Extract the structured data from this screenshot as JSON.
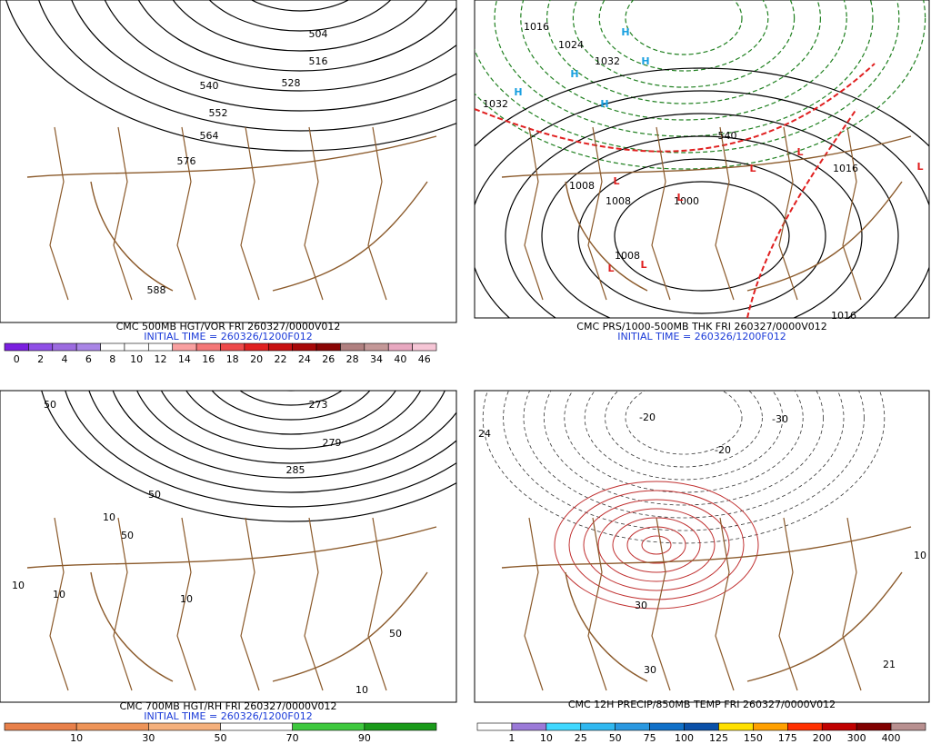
{
  "panels": [
    {
      "caption": "CMC 500MB HGT/VOR FRI 260327/0000V012",
      "init_time": "INITIAL TIME = 260326/1200F012",
      "contour_labels": [
        "504",
        "516",
        "528",
        "540",
        "552",
        "564",
        "576",
        "588"
      ],
      "scale": {
        "labels": [
          "0",
          "2",
          "4",
          "6",
          "8",
          "10",
          "12",
          "14",
          "16",
          "18",
          "20",
          "22",
          "24",
          "26",
          "28",
          "34",
          "40",
          "46"
        ],
        "colors": [
          "#7b1fe0",
          "#8f4fe6",
          "#9c6be0",
          "#a985e6",
          "#ffffff",
          "#ffffff",
          "#ffffff",
          "#f9a0a0",
          "#f47777",
          "#ee4a4a",
          "#e02020",
          "#c81010",
          "#a80808",
          "#8a0505",
          "#b08080",
          "#c49898",
          "#e8a8c0",
          "#f6c6d6"
        ]
      }
    },
    {
      "caption": "CMC PRS/1000-500MB THK FRI 260327/0000V012",
      "init_time": "INITIAL TIME = 260326/1200F012",
      "contour_labels": [
        "1016",
        "1024",
        "1032",
        "1032",
        "1008",
        "1008",
        "1000",
        "1008",
        "1016",
        "1016",
        "540",
        "H",
        "H",
        "H",
        "H",
        "H",
        "L",
        "L",
        "L",
        "L",
        "L",
        "L",
        "L"
      ]
    },
    {
      "caption": "CMC 700MB HGT/RH FRI 260327/0000V012",
      "init_time": "INITIAL TIME = 260326/1200F012",
      "contour_labels": [
        "50",
        "10",
        "10",
        "50",
        "50",
        "273",
        "279",
        "285",
        "10",
        "10",
        "50",
        "10"
      ],
      "scale": {
        "labels": [
          "10",
          "30",
          "50",
          "70",
          "90"
        ],
        "colors": [
          "#e8804a",
          "#ee9458",
          "#f5b07c",
          "#ffffff",
          "#3ec83e",
          "#1a9a1a"
        ]
      }
    },
    {
      "caption": "CMC 12H PRECIP/850MB TEMP FRI 260327/0000V012",
      "init_time": "",
      "contour_labels": [
        "24",
        "-20",
        "-30",
        "-20",
        "30",
        "30",
        "21",
        "10"
      ],
      "scale": {
        "labels": [
          "1",
          "10",
          "25",
          "50",
          "75",
          "100",
          "125",
          "150",
          "175",
          "200",
          "300",
          "400"
        ],
        "colors": [
          "#ffffff",
          "#9b7ad8",
          "#40d8ff",
          "#30b8f0",
          "#2a98e0",
          "#1070c8",
          "#0a50a8",
          "#ffe000",
          "#ffa000",
          "#ff3000",
          "#c00000",
          "#800000",
          "#b89090"
        ]
      }
    }
  ]
}
